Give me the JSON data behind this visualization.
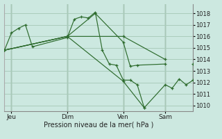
{
  "bg_color": "#cce8e0",
  "grid_color": "#aaccbb",
  "line_color": "#2d6b2d",
  "marker_color": "#2d6b2d",
  "xlabel": "Pression niveau de la mer( hPa )",
  "ylim": [
    1009.5,
    1018.8
  ],
  "yticks": [
    1010,
    1011,
    1012,
    1013,
    1014,
    1015,
    1016,
    1017,
    1018
  ],
  "xtick_labels": [
    "Jeu",
    "Dim",
    "Ven",
    "Sam"
  ],
  "xtick_positions": [
    1,
    9,
    17,
    23
  ],
  "xlim": [
    0,
    27
  ],
  "series": [
    [
      0,
      1014.8,
      1,
      1016.3,
      2,
      1016.7,
      3,
      1017.0,
      4,
      1015.1,
      9,
      1015.9,
      10,
      1017.5,
      11,
      1017.7,
      12,
      1017.6,
      13,
      1018.1,
      14,
      1014.8,
      15,
      1013.6,
      16,
      1013.5,
      17,
      1012.2,
      18,
      1012.2,
      19,
      1011.8,
      20,
      1009.8
    ],
    [
      0,
      1014.8,
      9,
      1016.0,
      13,
      1018.0,
      17,
      1015.5,
      18,
      1013.4,
      19,
      1013.5,
      23,
      1013.6
    ],
    [
      0,
      1014.8,
      9,
      1016.0,
      17,
      1016.0,
      23,
      1014.0
    ],
    [
      0,
      1014.8,
      9,
      1016.0,
      17,
      1012.1,
      20,
      1009.8,
      23,
      1011.8,
      24,
      1011.5,
      25,
      1012.3,
      26,
      1011.8,
      27,
      1012.2,
      27,
      1013.6
    ]
  ]
}
